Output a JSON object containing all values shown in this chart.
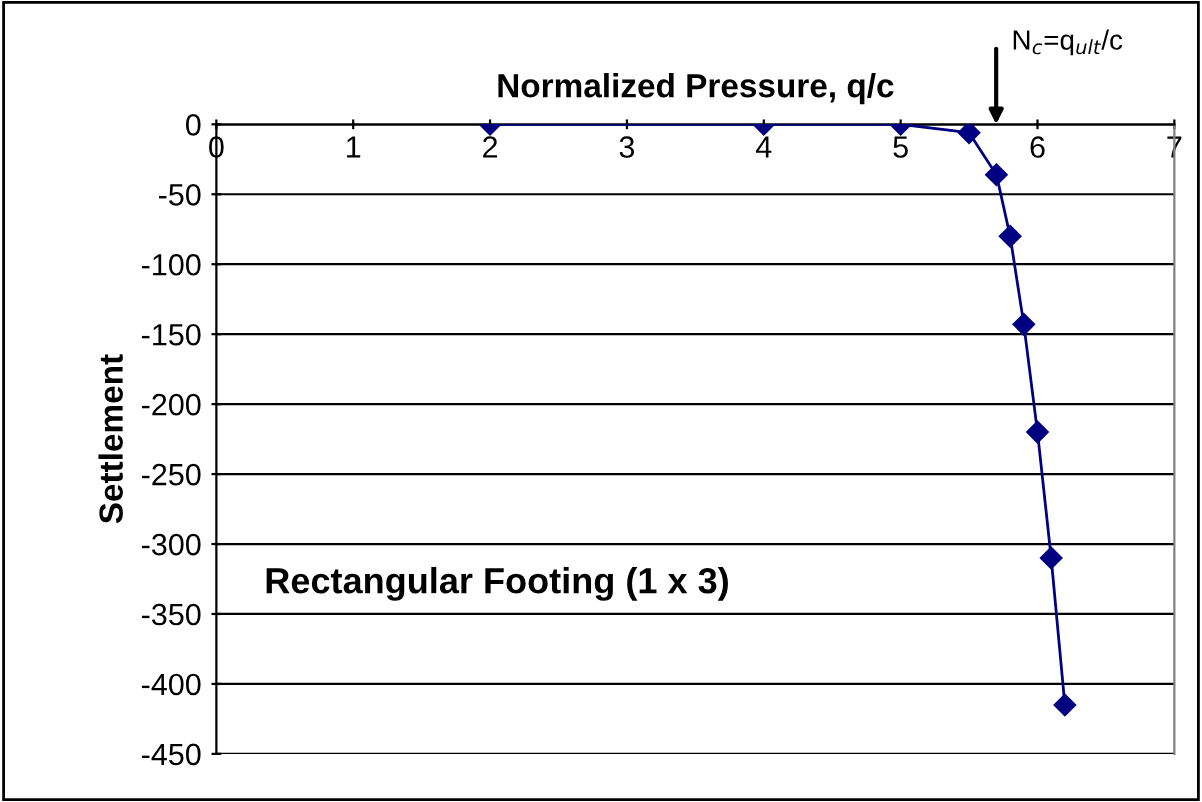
{
  "chart_data": {
    "type": "line",
    "xlabel": "Normalized Pressure, q/c",
    "ylabel": "Settlement",
    "x": [
      2,
      4,
      5,
      5.5,
      5.7,
      5.8,
      5.9,
      6.0,
      6.1,
      6.2
    ],
    "series": [
      {
        "color": "#000080",
        "values": [
          0,
          0,
          0,
          -6,
          -36,
          -80,
          -143,
          -220,
          -310,
          -415
        ]
      }
    ],
    "marker": "diamond",
    "line_style": "solid",
    "xlim": [
      0,
      7
    ],
    "xticks": [
      0,
      1,
      2,
      3,
      4,
      5,
      6,
      7
    ],
    "ylim": [
      -450,
      0
    ],
    "yticks": [
      -450,
      -400,
      -350,
      -300,
      -250,
      -200,
      -150,
      -100,
      -50,
      0
    ],
    "grid": "y",
    "legend": false,
    "annotations": [
      "N$_{c}$=q$_{ult}$/c",
      "Rectangular Footing (1 x 3)"
    ]
  }
}
